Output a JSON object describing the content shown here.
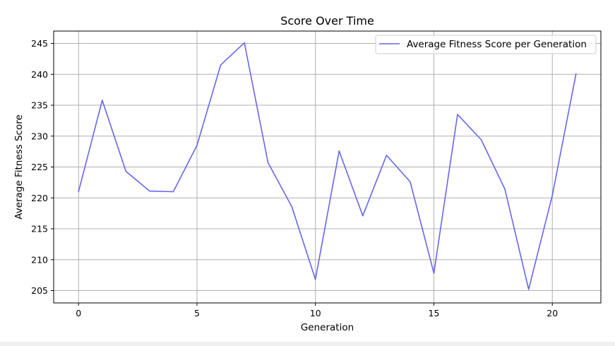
{
  "chart_data": {
    "type": "line",
    "title": "Score Over Time",
    "xlabel": "Generation",
    "ylabel": "Average Fitness Score",
    "xlim": [
      -1.05,
      22.05
    ],
    "ylim": [
      203.0,
      247.0
    ],
    "xticks": [
      0,
      5,
      10,
      15,
      20
    ],
    "yticks": [
      205,
      210,
      215,
      220,
      225,
      230,
      235,
      240,
      245
    ],
    "grid": true,
    "legend_position": "upper right",
    "series": [
      {
        "name": "Average Fitness Score per Generation",
        "color": "#6666ee",
        "x": [
          0,
          1,
          2,
          3,
          4,
          5,
          6,
          7,
          8,
          9,
          10,
          11,
          12,
          13,
          14,
          15,
          16,
          17,
          18,
          19,
          20,
          21
        ],
        "y": [
          221.0,
          235.8,
          224.3,
          221.1,
          221.0,
          228.5,
          241.5,
          245.1,
          225.7,
          218.6,
          206.8,
          227.6,
          217.1,
          226.9,
          222.6,
          207.8,
          233.5,
          229.4,
          221.4,
          205.2,
          220.4,
          240.1
        ]
      }
    ]
  }
}
